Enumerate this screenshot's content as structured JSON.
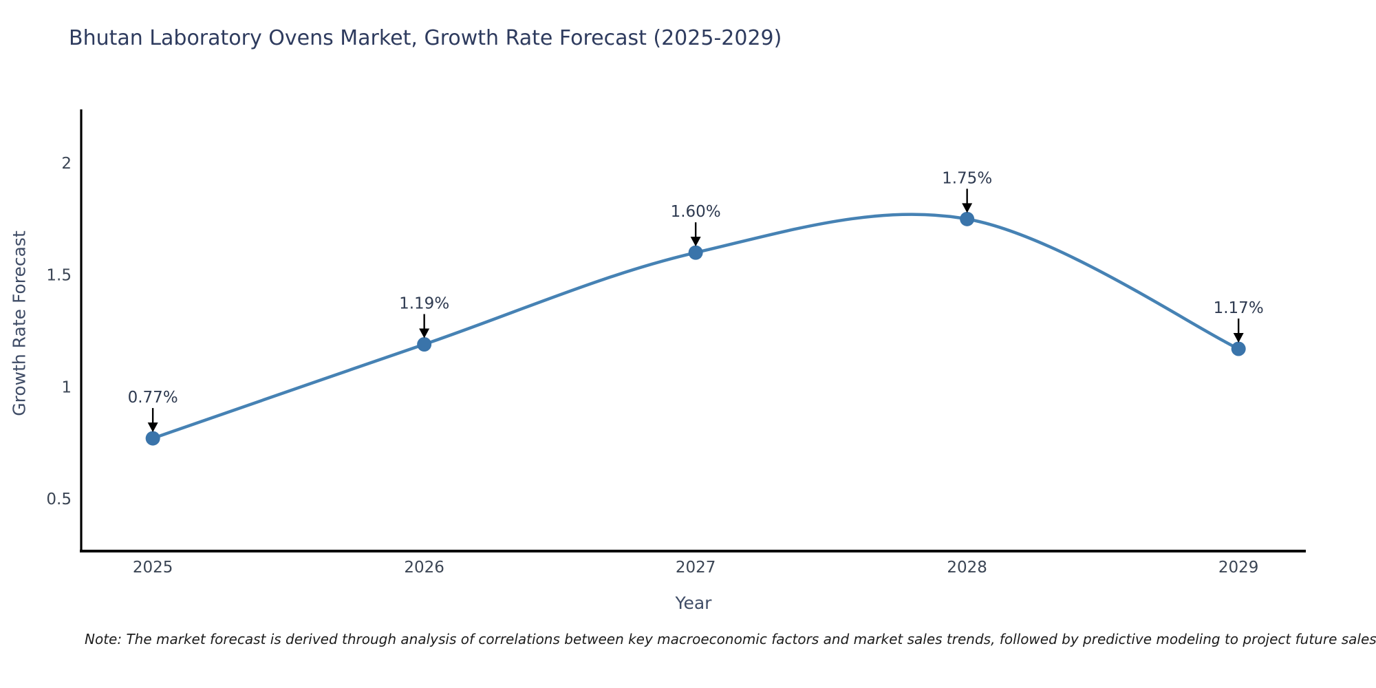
{
  "page": {
    "background": "#ffffff"
  },
  "chart_data": {
    "type": "line",
    "title": "Bhutan Laboratory Ovens Market, Growth Rate Forecast (2025-2029)",
    "xlabel": "Year",
    "ylabel": "Growth Rate Forecast",
    "x": [
      2025,
      2026,
      2027,
      2028,
      2029
    ],
    "series": [
      {
        "name": "Growth Rate Forecast",
        "values": [
          0.77,
          1.19,
          1.6,
          1.75,
          1.17
        ]
      }
    ],
    "point_labels": [
      "0.77%",
      "1.19%",
      "1.60%",
      "1.75%",
      "1.17%"
    ],
    "xtick_labels": [
      "2025",
      "2026",
      "2027",
      "2028",
      "2029"
    ],
    "yticks": [
      0.5,
      1,
      1.5,
      2
    ],
    "ytick_labels": [
      "0.5",
      "1",
      "1.5",
      "2"
    ],
    "xlim": [
      2024.736,
      2029.248
    ],
    "ylim": [
      0.266,
      2.24
    ],
    "grid": false,
    "legend_position": "none",
    "line_style": "smooth-spline",
    "line_color": "#4682b4",
    "marker_color": "#3a74aa",
    "axis_color": "#000000",
    "arrow_color": "#000000"
  },
  "note": "Note: The market forecast is derived through analysis of correlations between key macroeconomic factors and market sales trends, followed by predictive modeling to project future sales"
}
